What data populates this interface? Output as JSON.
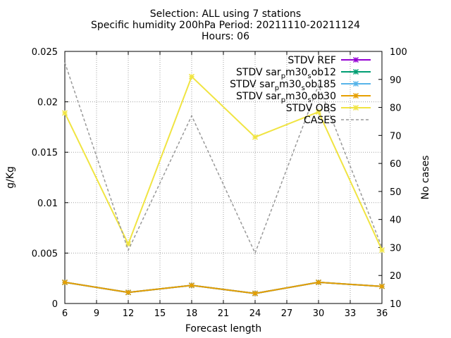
{
  "chart_data": {
    "type": "line",
    "title": [
      "Selection: ALL using      7 stations",
      "Specific humidity 200hPa   Period: 20211110-20211124",
      "Hours: 06"
    ],
    "xlabel": "Forecast length",
    "ylabel": "g/Kg",
    "y2label": "No cases",
    "x": [
      6,
      12,
      18,
      24,
      30,
      36
    ],
    "xticks": [
      "6",
      "9",
      "12",
      "15",
      "18",
      "21",
      "24",
      "27",
      "30",
      "33",
      "36"
    ],
    "xlim": [
      6,
      36
    ],
    "ylim": [
      0,
      0.025
    ],
    "yticks": [
      "0",
      "0.005",
      "0.01",
      "0.015",
      "0.02",
      "0.025"
    ],
    "y2lim": [
      10,
      100
    ],
    "y2ticks": [
      "10",
      "20",
      "30",
      "40",
      "50",
      "60",
      "70",
      "80",
      "90",
      "100"
    ],
    "grid": true,
    "legend_position": "top-right",
    "series": [
      {
        "name": "STDV REF",
        "sub": "",
        "color": "#9400d3",
        "dash": false,
        "axis": "y",
        "values": [
          0.0021,
          0.0011,
          0.0018,
          0.001,
          0.0021,
          0.0017
        ]
      },
      {
        "name": "STDV sar",
        "sub": "p",
        "tail": "m30",
        "sub2": "s",
        "tail2": "ob12",
        "color": "#009e73",
        "dash": false,
        "axis": "y",
        "values": [
          0.0021,
          0.0011,
          0.0018,
          0.001,
          0.0021,
          0.0017
        ]
      },
      {
        "name": "STDV sar",
        "sub": "p",
        "tail": "m30",
        "sub2": "s",
        "tail2": "ob185",
        "color": "#56b4e9",
        "dash": false,
        "axis": "y",
        "values": [
          0.0021,
          0.0011,
          0.0018,
          0.001,
          0.0021,
          0.0017
        ]
      },
      {
        "name": "STDV sar",
        "sub": "p",
        "tail": "m30",
        "sub2": "s",
        "tail2": "ob30",
        "color": "#e69f00",
        "dash": false,
        "axis": "y",
        "values": [
          0.0021,
          0.0011,
          0.0018,
          0.001,
          0.0021,
          0.0017
        ]
      },
      {
        "name": "STDV OBS",
        "sub": "",
        "color": "#f0e442",
        "dash": false,
        "axis": "y",
        "values": [
          0.0189,
          0.0059,
          0.0225,
          0.0165,
          0.019,
          0.0053
        ]
      },
      {
        "name": "CASES",
        "sub": "",
        "color": "#999999",
        "dash": true,
        "axis": "y2",
        "values": [
          96,
          29,
          77,
          28,
          88,
          30
        ]
      }
    ]
  }
}
